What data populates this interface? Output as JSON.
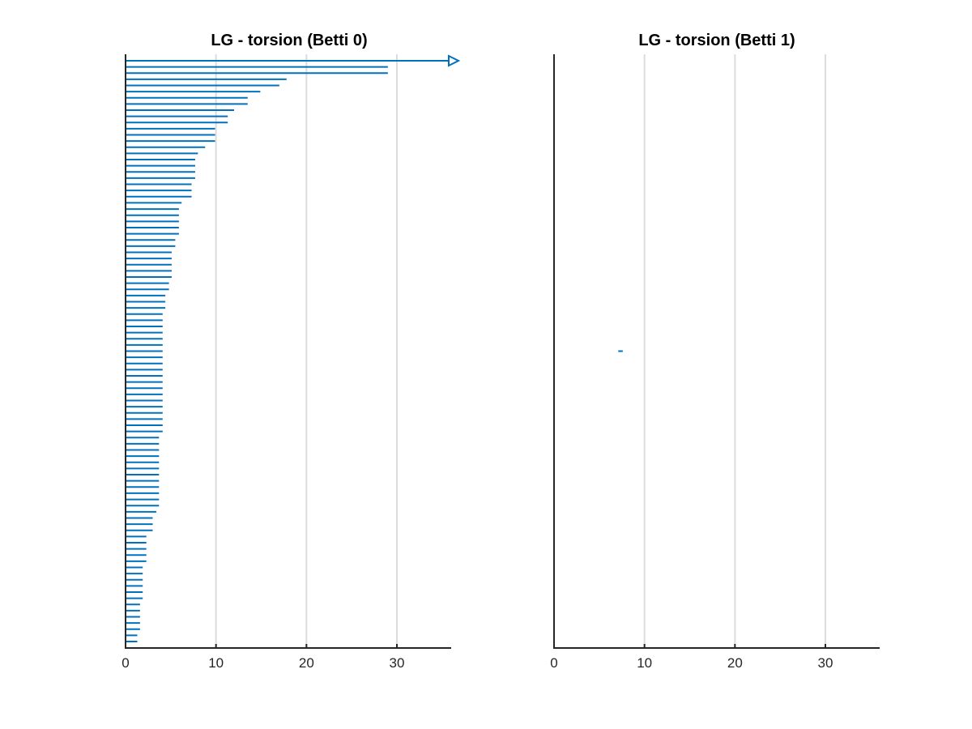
{
  "colors": {
    "bar": "#0072bd",
    "axis": "#262626",
    "grid": "#dcdcdc"
  },
  "chart_data": [
    {
      "type": "bar",
      "orientation": "horizontal",
      "title": "LG - torsion (Betti 0)",
      "xlim": [
        0,
        36
      ],
      "xticks": [
        0,
        10,
        20,
        30
      ],
      "grid": "x",
      "bar_count": 95,
      "series": [
        {
          "intervals": [
            [
              0,
              36,
              "infinite"
            ],
            [
              0,
              29.0
            ],
            [
              0,
              29.0
            ],
            [
              0,
              17.8
            ],
            [
              0,
              17.0
            ],
            [
              0,
              14.9
            ],
            [
              0,
              13.5
            ],
            [
              0,
              13.5
            ],
            [
              0,
              12.0
            ],
            [
              0,
              11.3
            ],
            [
              0,
              11.3
            ],
            [
              0,
              9.9
            ],
            [
              0,
              9.9
            ],
            [
              0,
              9.9
            ],
            [
              0,
              8.8
            ],
            [
              0,
              8.0
            ],
            [
              0,
              7.7
            ],
            [
              0,
              7.7
            ],
            [
              0,
              7.7
            ],
            [
              0,
              7.7
            ],
            [
              0,
              7.3
            ],
            [
              0,
              7.3
            ],
            [
              0,
              7.3
            ],
            [
              0,
              6.2
            ],
            [
              0,
              5.9
            ],
            [
              0,
              5.9
            ],
            [
              0,
              5.9
            ],
            [
              0,
              5.9
            ],
            [
              0,
              5.9
            ],
            [
              0,
              5.5
            ],
            [
              0,
              5.5
            ],
            [
              0,
              5.1
            ],
            [
              0,
              5.1
            ],
            [
              0,
              5.1
            ],
            [
              0,
              5.1
            ],
            [
              0,
              5.1
            ],
            [
              0,
              4.8
            ],
            [
              0,
              4.8
            ],
            [
              0,
              4.4
            ],
            [
              0,
              4.4
            ],
            [
              0,
              4.4
            ],
            [
              0,
              4.1
            ],
            [
              0,
              4.1
            ],
            [
              0,
              4.1
            ],
            [
              0,
              4.1
            ],
            [
              0,
              4.1
            ],
            [
              0,
              4.1
            ],
            [
              0,
              4.1
            ],
            [
              0,
              4.1
            ],
            [
              0,
              4.1
            ],
            [
              0,
              4.1
            ],
            [
              0,
              4.1
            ],
            [
              0,
              4.1
            ],
            [
              0,
              4.1
            ],
            [
              0,
              4.1
            ],
            [
              0,
              4.1
            ],
            [
              0,
              4.1
            ],
            [
              0,
              4.1
            ],
            [
              0,
              4.1
            ],
            [
              0,
              4.1
            ],
            [
              0,
              4.1
            ],
            [
              0,
              3.7
            ],
            [
              0,
              3.7
            ],
            [
              0,
              3.7
            ],
            [
              0,
              3.7
            ],
            [
              0,
              3.7
            ],
            [
              0,
              3.7
            ],
            [
              0,
              3.7
            ],
            [
              0,
              3.7
            ],
            [
              0,
              3.7
            ],
            [
              0,
              3.7
            ],
            [
              0,
              3.7
            ],
            [
              0,
              3.7
            ],
            [
              0,
              3.4
            ],
            [
              0,
              3.0
            ],
            [
              0,
              3.0
            ],
            [
              0,
              3.0
            ],
            [
              0,
              2.3
            ],
            [
              0,
              2.3
            ],
            [
              0,
              2.3
            ],
            [
              0,
              2.3
            ],
            [
              0,
              2.3
            ],
            [
              0,
              1.9
            ],
            [
              0,
              1.9
            ],
            [
              0,
              1.9
            ],
            [
              0,
              1.9
            ],
            [
              0,
              1.9
            ],
            [
              0,
              1.9
            ],
            [
              0,
              1.6
            ],
            [
              0,
              1.6
            ],
            [
              0,
              1.6
            ],
            [
              0,
              1.6
            ],
            [
              0,
              1.6
            ],
            [
              0,
              1.3
            ],
            [
              0,
              1.3
            ]
          ]
        }
      ]
    },
    {
      "type": "bar",
      "orientation": "horizontal",
      "title": "LG - torsion (Betti 1)",
      "xlim": [
        0,
        36
      ],
      "xticks": [
        0,
        10,
        20,
        30
      ],
      "grid": "x",
      "series": [
        {
          "intervals": [
            [
              7.1,
              7.6
            ]
          ],
          "row_fraction": 0.5
        }
      ]
    }
  ]
}
